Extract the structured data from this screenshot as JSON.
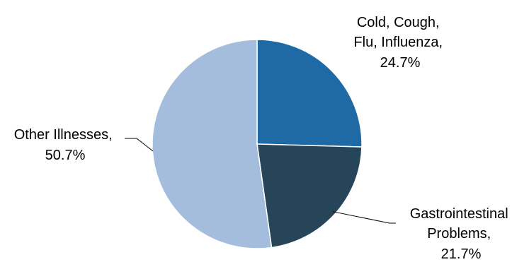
{
  "chart_data": {
    "type": "pie",
    "title": "",
    "series": [
      {
        "name": "Cold, Cough, Flu, Influenza",
        "value": 24.7,
        "value_label": "24.7%",
        "label_lines": [
          "Cold, Cough,",
          "Flu, Influenza,",
          "24.7%"
        ],
        "color": "#1f6aa5"
      },
      {
        "name": "Gastrointestinal Problems",
        "value": 21.7,
        "value_label": "21.7%",
        "label_lines": [
          "Gastrointestinal",
          "Problems,",
          "21.7%"
        ],
        "color": "#264559"
      },
      {
        "name": "Other Illnesses",
        "value": 50.7,
        "value_label": "50.7%",
        "label_lines": [
          "Other Illnesses,",
          "50.7%"
        ],
        "color": "#a5bddc"
      }
    ],
    "start_angle": "12 o'clock",
    "direction": "clockwise",
    "legend": "none"
  }
}
